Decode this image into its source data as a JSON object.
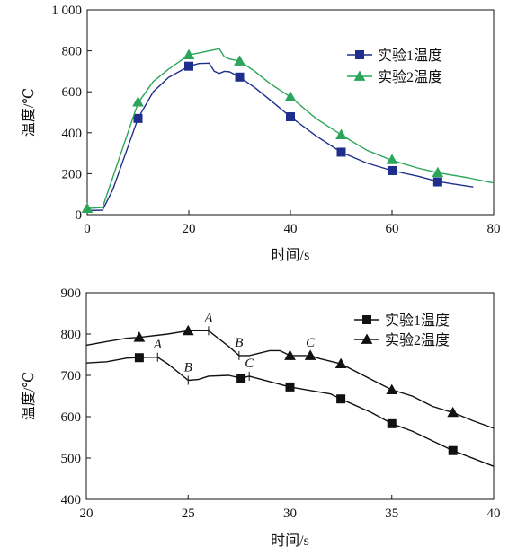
{
  "chart_data": [
    {
      "type": "line",
      "title": "",
      "xlabel": "时间/s",
      "ylabel": "温度/℃",
      "xlim": [
        0,
        80
      ],
      "ylim": [
        0,
        1000
      ],
      "xticks": [
        0,
        20,
        40,
        60,
        80
      ],
      "yticks": [
        0,
        200,
        400,
        600,
        800,
        1000
      ],
      "ytick_labels": [
        "0",
        "200",
        "400",
        "600",
        "800",
        "1 000"
      ],
      "grid": false,
      "legend": "top-right",
      "series": [
        {
          "name": "实验1温度",
          "color": "#1f2e8c",
          "marker": "square",
          "line": [
            [
              0,
              20
            ],
            [
              3,
              22
            ],
            [
              5,
              120
            ],
            [
              8,
              330
            ],
            [
              10,
              470
            ],
            [
              13,
              600
            ],
            [
              16,
              670
            ],
            [
              20,
              725
            ],
            [
              22,
              738
            ],
            [
              24,
              740
            ],
            [
              25,
              700
            ],
            [
              26,
              690
            ],
            [
              27,
              700
            ],
            [
              28,
              698
            ],
            [
              30,
              672
            ],
            [
              33,
              620
            ],
            [
              36,
              560
            ],
            [
              40,
              478
            ],
            [
              45,
              385
            ],
            [
              50,
              305
            ],
            [
              55,
              252
            ],
            [
              60,
              215
            ],
            [
              65,
              188
            ],
            [
              69,
              162
            ],
            [
              72,
              150
            ],
            [
              76,
              135
            ]
          ],
          "markers": [
            [
              10,
              470
            ],
            [
              20,
              725
            ],
            [
              30,
              672
            ],
            [
              40,
              478
            ],
            [
              50,
              305
            ],
            [
              60,
              215
            ],
            [
              69,
              160
            ]
          ]
        },
        {
          "name": "实验2温度",
          "color": "#2aa55a",
          "marker": "triangle",
          "line": [
            [
              0,
              30
            ],
            [
              3,
              35
            ],
            [
              5,
              180
            ],
            [
              8,
              400
            ],
            [
              10,
              545
            ],
            [
              13,
              650
            ],
            [
              16,
              710
            ],
            [
              20,
              780
            ],
            [
              22,
              790
            ],
            [
              24,
              800
            ],
            [
              26,
              810
            ],
            [
              27,
              770
            ],
            [
              28,
              760
            ],
            [
              30,
              750
            ],
            [
              33,
              700
            ],
            [
              36,
              640
            ],
            [
              40,
              575
            ],
            [
              45,
              470
            ],
            [
              50,
              390
            ],
            [
              55,
              315
            ],
            [
              60,
              265
            ],
            [
              65,
              228
            ],
            [
              69,
              205
            ],
            [
              75,
              180
            ],
            [
              80,
              155
            ]
          ],
          "markers": [
            [
              0,
              30
            ],
            [
              10,
              550
            ],
            [
              20,
              780
            ],
            [
              30,
              750
            ],
            [
              40,
              575
            ],
            [
              50,
              390
            ],
            [
              60,
              268
            ],
            [
              69,
              205
            ]
          ]
        }
      ]
    },
    {
      "type": "line",
      "title": "",
      "xlabel": "时间/s",
      "ylabel": "温度/℃",
      "xlim": [
        20,
        40
      ],
      "ylim": [
        400,
        900
      ],
      "xticks": [
        20,
        25,
        30,
        35,
        40
      ],
      "yticks": [
        400,
        500,
        600,
        700,
        800,
        900
      ],
      "grid": false,
      "legend": "top-right",
      "series": [
        {
          "name": "实验1温度",
          "color": "#111111",
          "marker": "square",
          "line": [
            [
              20,
              730
            ],
            [
              21,
              733
            ],
            [
              22,
              742
            ],
            [
              22.6,
              743
            ],
            [
              23,
              744
            ],
            [
              23.5,
              744
            ],
            [
              24,
              728
            ],
            [
              25,
              688
            ],
            [
              25.5,
              690
            ],
            [
              26,
              698
            ],
            [
              27,
              700
            ],
            [
              27.6,
              693
            ],
            [
              28,
              698
            ],
            [
              29,
              685
            ],
            [
              30,
              672
            ],
            [
              32,
              655
            ],
            [
              32.5,
              643
            ],
            [
              34,
              610
            ],
            [
              35,
              583
            ],
            [
              36,
              565
            ],
            [
              38,
              518
            ],
            [
              40,
              480
            ]
          ],
          "markers": [
            [
              22.6,
              743
            ],
            [
              27.6,
              693
            ],
            [
              30,
              672
            ],
            [
              32.5,
              643
            ],
            [
              35,
              583
            ],
            [
              38,
              518
            ]
          ],
          "annotations": [
            {
              "label": "A",
              "x": 23.5,
              "y": 744
            },
            {
              "label": "B",
              "x": 25,
              "y": 688
            },
            {
              "label": "C",
              "x": 28,
              "y": 698
            }
          ]
        },
        {
          "name": "实验2温度",
          "color": "#111111",
          "marker": "triangle",
          "line": [
            [
              20,
              773
            ],
            [
              21,
              782
            ],
            [
              22,
              790
            ],
            [
              22.6,
              792
            ],
            [
              24,
              800
            ],
            [
              25,
              808
            ],
            [
              25.5,
              808
            ],
            [
              26,
              808
            ],
            [
              27,
              770
            ],
            [
              27.5,
              748
            ],
            [
              28,
              748
            ],
            [
              29,
              760
            ],
            [
              29.5,
              760
            ],
            [
              30,
              748
            ],
            [
              31,
              748
            ],
            [
              31.5,
              740
            ],
            [
              32.5,
              728
            ],
            [
              34,
              690
            ],
            [
              35,
              665
            ],
            [
              36,
              650
            ],
            [
              37,
              625
            ],
            [
              38,
              610
            ],
            [
              39,
              590
            ],
            [
              40,
              572
            ]
          ],
          "markers": [
            [
              22.6,
              792
            ],
            [
              25,
              808
            ],
            [
              30,
              748
            ],
            [
              31,
              748
            ],
            [
              32.5,
              728
            ],
            [
              35,
              665
            ],
            [
              38,
              610
            ]
          ],
          "annotations": [
            {
              "label": "A",
              "x": 26,
              "y": 808
            },
            {
              "label": "B",
              "x": 27.5,
              "y": 748
            },
            {
              "label": "C",
              "x": 31,
              "y": 748
            }
          ]
        }
      ]
    }
  ]
}
